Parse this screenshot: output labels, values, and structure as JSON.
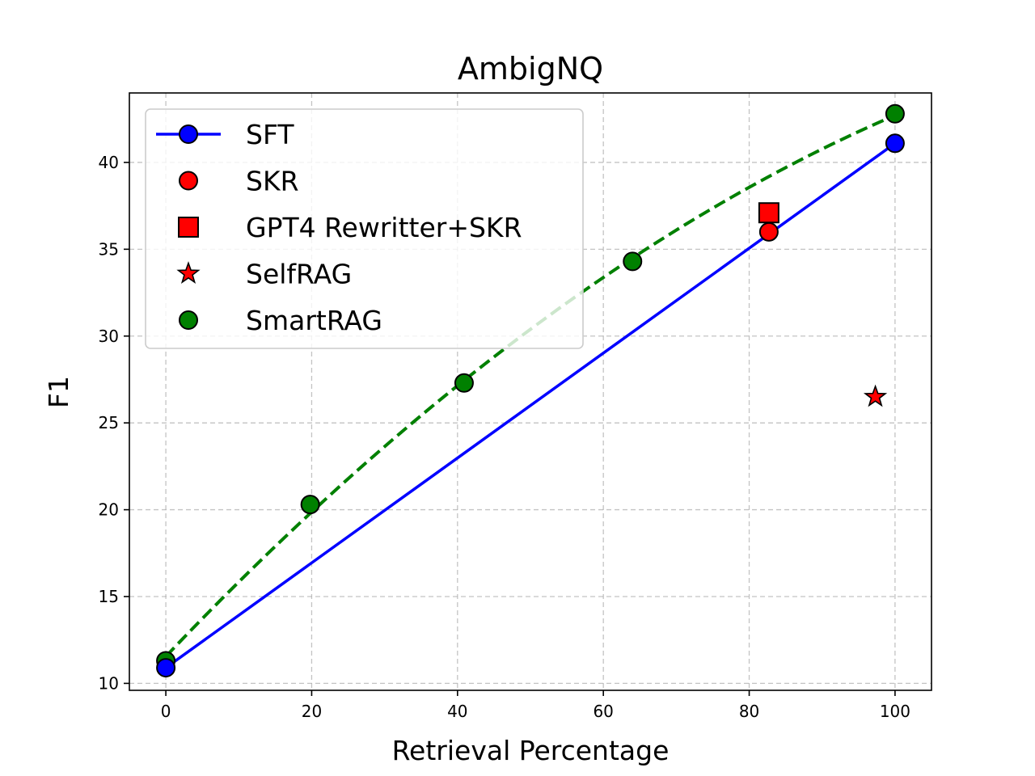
{
  "chart_data": {
    "type": "line",
    "title": "AmbigNQ",
    "xlabel": "Retrieval Percentage",
    "ylabel": "F1",
    "xlim": [
      -5,
      105
    ],
    "ylim": [
      9.6,
      44
    ],
    "xticks": [
      0,
      20,
      40,
      60,
      80,
      100
    ],
    "yticks": [
      10,
      15,
      20,
      25,
      30,
      35,
      40
    ],
    "grid": true,
    "legend_position": "upper-left",
    "series": [
      {
        "name": "SFT",
        "kind": "line",
        "color": "#0000ff",
        "marker": "circle",
        "x": [
          0,
          100
        ],
        "y": [
          10.9,
          41.1
        ]
      },
      {
        "name": "SKR",
        "kind": "scatter",
        "color": "#ff0000",
        "marker": "circle",
        "x": [
          82.7
        ],
        "y": [
          36.0
        ]
      },
      {
        "name": "GPT4 Rewritter+SKR",
        "kind": "scatter",
        "color": "#ff0000",
        "marker": "square",
        "x": [
          82.7
        ],
        "y": [
          37.1
        ]
      },
      {
        "name": "SelfRAG",
        "kind": "scatter",
        "color": "#ff0000",
        "marker": "star",
        "x": [
          97.3
        ],
        "y": [
          26.5
        ]
      },
      {
        "name": "SmartRAG",
        "kind": "scatter+dashed-fit",
        "color": "#008000",
        "marker": "circle",
        "x": [
          0,
          19.8,
          40.9,
          64.0,
          100
        ],
        "y": [
          11.3,
          20.3,
          27.3,
          34.3,
          42.8
        ]
      }
    ]
  }
}
